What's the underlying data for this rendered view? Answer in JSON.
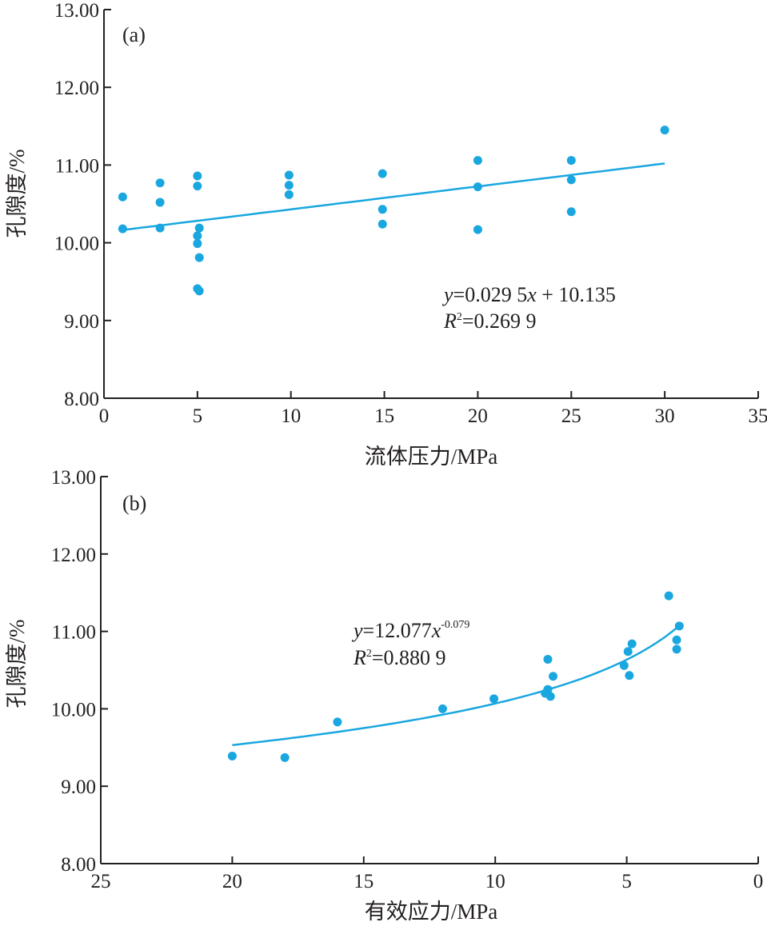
{
  "chart_data": [
    {
      "panel_label": "(a)",
      "type": "scatter",
      "xlabel": "流体压力/MPa",
      "ylabel": "孔隙度/%",
      "xlim": [
        0,
        35
      ],
      "ylim": [
        8,
        13
      ],
      "x_ticks": [
        "0",
        "5",
        "10",
        "15",
        "20",
        "25",
        "30",
        "35"
      ],
      "y_ticks": [
        "8.00",
        "9.00",
        "10.00",
        "11.00",
        "12.00",
        "13.00"
      ],
      "colors": {
        "points": "#1aa7e0",
        "fit": "#1aa7e0",
        "axis": "#231f20"
      },
      "points": [
        {
          "x": 1,
          "y": 10.59
        },
        {
          "x": 1,
          "y": 10.18
        },
        {
          "x": 3,
          "y": 10.77
        },
        {
          "x": 3,
          "y": 10.52
        },
        {
          "x": 3,
          "y": 10.19
        },
        {
          "x": 5,
          "y": 10.86
        },
        {
          "x": 5,
          "y": 10.73
        },
        {
          "x": 5.1,
          "y": 10.19
        },
        {
          "x": 5,
          "y": 10.09
        },
        {
          "x": 5,
          "y": 9.99
        },
        {
          "x": 5.1,
          "y": 9.81
        },
        {
          "x": 5,
          "y": 9.41
        },
        {
          "x": 5.1,
          "y": 9.38
        },
        {
          "x": 9.9,
          "y": 10.87
        },
        {
          "x": 9.9,
          "y": 10.74
        },
        {
          "x": 9.9,
          "y": 10.62
        },
        {
          "x": 14.9,
          "y": 10.89
        },
        {
          "x": 14.9,
          "y": 10.43
        },
        {
          "x": 14.9,
          "y": 10.24
        },
        {
          "x": 20,
          "y": 11.06
        },
        {
          "x": 20,
          "y": 10.72
        },
        {
          "x": 20,
          "y": 10.17
        },
        {
          "x": 25,
          "y": 11.06
        },
        {
          "x": 25,
          "y": 10.81
        },
        {
          "x": 25,
          "y": 10.4
        },
        {
          "x": 30,
          "y": 11.45
        }
      ],
      "fit": {
        "kind": "linear",
        "slope": 0.0295,
        "intercept": 10.135,
        "x_range": [
          1,
          30
        ]
      },
      "equation": {
        "line1_y": "y",
        "line1_rest": "=0.029 5",
        "line1_x": "x",
        "line1_tail": " + 10.135",
        "line2_R": "R",
        "line2_sup": "2",
        "line2_rest": "=0.269 9"
      }
    },
    {
      "panel_label": "(b)",
      "type": "scatter",
      "xlabel": "有效应力/MPa",
      "ylabel": "孔隙度/%",
      "xlim": [
        25,
        0
      ],
      "ylim": [
        8,
        13
      ],
      "x_ticks": [
        "25",
        "20",
        "15",
        "10",
        "5",
        "0"
      ],
      "y_ticks": [
        "8.00",
        "9.00",
        "10.00",
        "11.00",
        "12.00",
        "13.00"
      ],
      "colors": {
        "points": "#1aa7e0",
        "fit": "#1aa7e0",
        "axis": "#231f20"
      },
      "points": [
        {
          "x": 20,
          "y": 9.39
        },
        {
          "x": 18,
          "y": 9.37
        },
        {
          "x": 16,
          "y": 9.83
        },
        {
          "x": 12,
          "y": 10.0
        },
        {
          "x": 10.05,
          "y": 10.13
        },
        {
          "x": 8.1,
          "y": 10.2
        },
        {
          "x": 8.0,
          "y": 10.25
        },
        {
          "x": 7.9,
          "y": 10.16
        },
        {
          "x": 8.0,
          "y": 10.64
        },
        {
          "x": 7.8,
          "y": 10.42
        },
        {
          "x": 5.1,
          "y": 10.56
        },
        {
          "x": 4.9,
          "y": 10.43
        },
        {
          "x": 4.95,
          "y": 10.74
        },
        {
          "x": 4.8,
          "y": 10.84
        },
        {
          "x": 3.4,
          "y": 11.46
        },
        {
          "x": 3.0,
          "y": 11.07
        },
        {
          "x": 3.1,
          "y": 10.89
        },
        {
          "x": 3.1,
          "y": 10.77
        }
      ],
      "fit": {
        "kind": "power",
        "a": 12.077,
        "b": -0.079,
        "x_range": [
          20,
          3
        ]
      },
      "equation": {
        "line1_y": "y",
        "line1_rest": "=12.077",
        "line1_x": "x",
        "line1_sup": "-0.079",
        "line2_R": "R",
        "line2_sup": "2",
        "line2_rest": "=0.880 9"
      }
    }
  ]
}
